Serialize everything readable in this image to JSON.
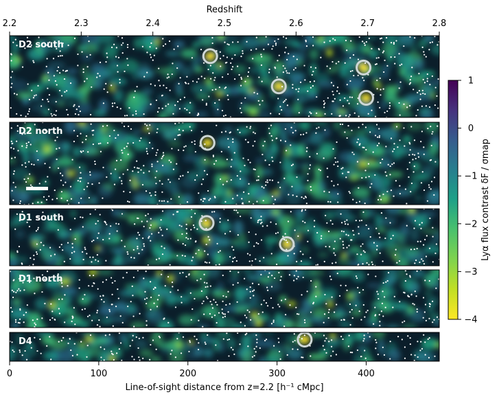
{
  "chart_data": {
    "type": "heatmap",
    "top_axis": {
      "label": "Redshift",
      "range": [
        2.2,
        2.8
      ],
      "ticks": [
        2.2,
        2.3,
        2.4,
        2.5,
        2.6,
        2.7,
        2.8
      ],
      "tick_labels": [
        "2.2",
        "2.3",
        "2.4",
        "2.5",
        "2.6",
        "2.7",
        "2.8"
      ]
    },
    "bottom_axis": {
      "label": "Line-of-sight distance from z=2.2 [h⁻¹ cMpc]",
      "range": [
        0,
        482
      ],
      "ticks": [
        0,
        100,
        200,
        300,
        400
      ],
      "tick_labels": [
        "0",
        "100",
        "200",
        "300",
        "400"
      ]
    },
    "colorbar": {
      "label": "Lyα flux contrast δF / σmap",
      "range": [
        -4,
        1
      ],
      "ticks": [
        1,
        0,
        -1,
        -2,
        -3,
        -4
      ],
      "tick_labels": [
        "1",
        "0",
        "−1",
        "−2",
        "−3",
        "−4"
      ],
      "colormap": "viridis (reversed)"
    },
    "panels": [
      {
        "name": "D2 south",
        "circles_x": [
          225,
          302,
          397,
          400
        ]
      },
      {
        "name": "D2 north",
        "circles_x": [
          222
        ]
      },
      {
        "name": "D1 south",
        "circles_x": [
          221,
          311
        ]
      },
      {
        "name": "D1 north",
        "circles_x": []
      },
      {
        "name": "D4",
        "circles_x": [
          331
        ]
      }
    ],
    "scale_bar": {
      "panel": "D2 north"
    }
  }
}
